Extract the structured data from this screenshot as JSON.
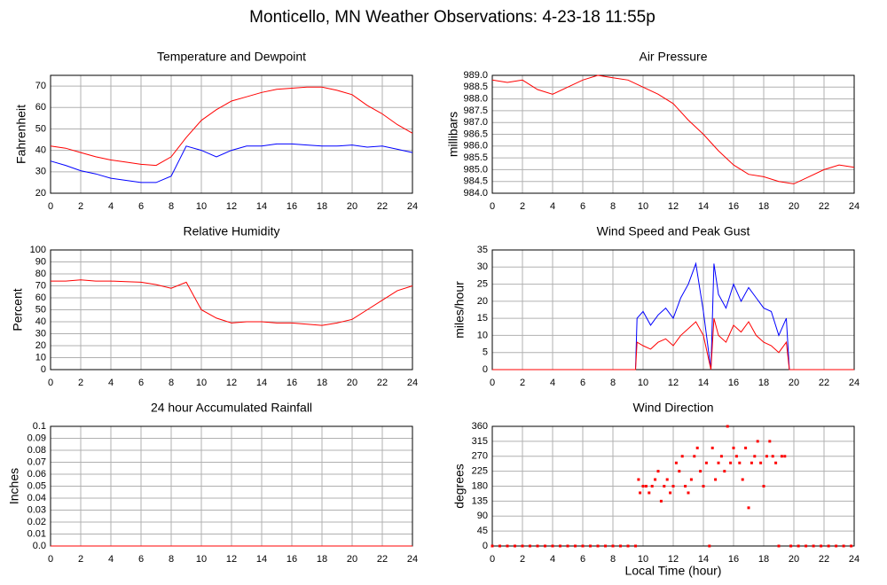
{
  "title": "Monticello, MN Weather Observations: 4-23-18 11:55p",
  "chart_data": [
    {
      "type": "line",
      "title": "Temperature and Dewpoint",
      "ylabel": "Fahrenheit",
      "x": [
        0,
        1,
        2,
        3,
        4,
        5,
        6,
        7,
        8,
        9,
        10,
        11,
        12,
        13,
        14,
        15,
        16,
        17,
        18,
        19,
        20,
        21,
        22,
        23,
        24
      ],
      "series": [
        {
          "name": "Temperature",
          "color": "#ff0000",
          "values": [
            42,
            41,
            39,
            37,
            35.5,
            34.5,
            33.5,
            33,
            37,
            46,
            54,
            59,
            63,
            65,
            67,
            68.5,
            69,
            69.5,
            69.5,
            68,
            66,
            61,
            57,
            52,
            48
          ]
        },
        {
          "name": "Dewpoint",
          "color": "#0000ff",
          "values": [
            35,
            33,
            30.5,
            29,
            27,
            26,
            25,
            25,
            28,
            42,
            40,
            37,
            40,
            42,
            42,
            43,
            43,
            42.5,
            42,
            42,
            42.5,
            41.5,
            42,
            40.5,
            39
          ]
        }
      ],
      "xlim": [
        0,
        24
      ],
      "xticks": [
        0,
        2,
        4,
        6,
        8,
        10,
        12,
        14,
        16,
        18,
        20,
        22,
        24
      ],
      "ylim": [
        20,
        75
      ],
      "yticks": [
        20,
        30,
        40,
        50,
        60,
        70
      ],
      "grid": true
    },
    {
      "type": "line",
      "title": "Air Pressure",
      "ylabel": "millibars",
      "x": [
        0,
        1,
        2,
        3,
        4,
        5,
        6,
        7,
        8,
        9,
        10,
        11,
        12,
        13,
        14,
        15,
        16,
        17,
        18,
        19,
        20,
        21,
        22,
        23,
        24
      ],
      "series": [
        {
          "name": "Air Pressure",
          "color": "#ff0000",
          "values": [
            988.8,
            988.7,
            988.8,
            988.4,
            988.2,
            988.5,
            988.8,
            989,
            988.9,
            988.8,
            988.5,
            988.2,
            987.8,
            987.1,
            986.5,
            985.8,
            985.2,
            984.8,
            984.7,
            984.5,
            984.4,
            984.7,
            985,
            985.2,
            985.1
          ]
        }
      ],
      "xlim": [
        0,
        24
      ],
      "xticks": [
        0,
        2,
        4,
        6,
        8,
        10,
        12,
        14,
        16,
        18,
        20,
        22,
        24
      ],
      "ylim": [
        984,
        989
      ],
      "yticks": [
        {
          "value": 984,
          "label": "984.0"
        },
        984.5,
        {
          "value": 985,
          "label": "985.0"
        },
        985.5,
        {
          "value": 986,
          "label": "986.0"
        },
        986.5,
        {
          "value": 987,
          "label": "987.0"
        },
        987.5,
        {
          "value": 988,
          "label": "988.0"
        },
        988.5,
        {
          "value": 989,
          "label": "989.0"
        }
      ],
      "grid": true
    },
    {
      "type": "line",
      "title": "Relative Humidity",
      "ylabel": "Percent",
      "x": [
        0,
        1,
        2,
        3,
        4,
        5,
        6,
        7,
        8,
        9,
        10,
        11,
        12,
        13,
        14,
        15,
        16,
        17,
        18,
        19,
        20,
        21,
        22,
        23,
        24
      ],
      "series": [
        {
          "name": "Relative Humidity",
          "color": "#ff0000",
          "values": [
            74,
            74,
            75,
            74,
            74,
            73.5,
            73,
            71,
            68,
            73,
            50,
            43,
            39,
            40,
            40,
            39,
            39,
            38,
            37,
            39,
            42,
            50,
            58,
            66,
            70
          ]
        }
      ],
      "xlim": [
        0,
        24
      ],
      "xticks": [
        0,
        2,
        4,
        6,
        8,
        10,
        12,
        14,
        16,
        18,
        20,
        22,
        24
      ],
      "ylim": [
        0,
        100
      ],
      "yticks": [
        0,
        10,
        20,
        30,
        40,
        50,
        60,
        70,
        80,
        90,
        100
      ],
      "grid": true
    },
    {
      "type": "line",
      "title": "Wind Speed and Peak Gust",
      "ylabel": "miles/hour",
      "x": [
        0,
        9.5,
        9.6,
        10,
        10.5,
        11,
        11.5,
        12,
        12.5,
        13,
        13.5,
        14,
        14.5,
        14.7,
        15,
        15.5,
        16,
        16.5,
        17,
        17.5,
        18,
        18.5,
        19,
        19.5,
        19.7,
        24
      ],
      "series": [
        {
          "name": "Peak Gust",
          "color": "#0000ff",
          "values": [
            0,
            0,
            15,
            17,
            13,
            16,
            18,
            15,
            21,
            25,
            31,
            17,
            0,
            31,
            22,
            18,
            25,
            20,
            24,
            21,
            18,
            17,
            10,
            15,
            0,
            0
          ]
        },
        {
          "name": "Wind Speed",
          "color": "#ff0000",
          "values": [
            0,
            0,
            8,
            7,
            6,
            8,
            9,
            7,
            10,
            12,
            14,
            10,
            0,
            15,
            10,
            8,
            13,
            11,
            14,
            10,
            8,
            7,
            5,
            8,
            0,
            0
          ]
        }
      ],
      "xlim": [
        0,
        24
      ],
      "xticks": [
        0,
        2,
        4,
        6,
        8,
        10,
        12,
        14,
        16,
        18,
        20,
        22,
        24
      ],
      "ylim": [
        0,
        35
      ],
      "yticks": [
        0,
        5,
        10,
        15,
        20,
        25,
        30,
        35
      ],
      "grid": true
    },
    {
      "type": "line",
      "title": "24 hour Accumulated Rainfall",
      "ylabel": "Inches",
      "x": [
        0,
        24
      ],
      "series": [
        {
          "name": "Rainfall",
          "color": "#ff0000",
          "values": [
            0,
            0
          ]
        }
      ],
      "xlim": [
        0,
        24
      ],
      "xticks": [
        0,
        2,
        4,
        6,
        8,
        10,
        12,
        14,
        16,
        18,
        20,
        22,
        24
      ],
      "ylim": [
        0,
        0.1
      ],
      "yticks": [
        {
          "value": 0,
          "label": "0.0"
        },
        0.01,
        0.02,
        0.03,
        0.04,
        0.05,
        0.06,
        0.07,
        0.08,
        0.09,
        0.1
      ],
      "grid": true
    },
    {
      "type": "scatter",
      "title": "Wind Direction",
      "ylabel": "degrees",
      "xlabel": "Local Time (hour)",
      "x": [
        0,
        0.5,
        1,
        1.5,
        2,
        2.5,
        3,
        3.5,
        4,
        4.5,
        5,
        5.5,
        6,
        6.5,
        7,
        7.5,
        8,
        8.5,
        9,
        9.5,
        9.7,
        9.8,
        10,
        10.2,
        10.4,
        10.6,
        10.8,
        11,
        11.2,
        11.4,
        11.6,
        11.8,
        12,
        12.2,
        12.4,
        12.6,
        12.8,
        13,
        13.2,
        13.4,
        13.6,
        13.8,
        14,
        14.2,
        14.4,
        14.6,
        14.8,
        15,
        15.2,
        15.4,
        15.6,
        15.8,
        16,
        16.2,
        16.4,
        16.6,
        16.8,
        17,
        17.2,
        17.4,
        17.6,
        17.8,
        18,
        18.2,
        18.4,
        18.6,
        18.8,
        19,
        19.2,
        19.4,
        19.8,
        20.3,
        20.8,
        21.3,
        21.8,
        22.3,
        22.8,
        23.3,
        23.8
      ],
      "series": [
        {
          "name": "Wind Direction",
          "color": "#ff0000",
          "values": [
            0,
            0,
            0,
            0,
            0,
            0,
            0,
            0,
            0,
            0,
            0,
            0,
            0,
            0,
            0,
            0,
            0,
            0,
            0,
            0,
            200,
            160,
            180,
            180,
            160,
            180,
            200,
            225,
            135,
            180,
            200,
            160,
            180,
            250,
            225,
            270,
            180,
            160,
            200,
            270,
            295,
            225,
            180,
            250,
            0,
            295,
            200,
            250,
            270,
            225,
            360,
            250,
            295,
            270,
            250,
            200,
            295,
            115,
            250,
            270,
            315,
            250,
            180,
            270,
            315,
            270,
            250,
            0,
            270,
            270,
            0,
            0,
            0,
            0,
            0,
            0,
            0,
            0,
            0
          ]
        }
      ],
      "xlim": [
        0,
        24
      ],
      "xticks": [
        0,
        2,
        4,
        6,
        8,
        10,
        12,
        14,
        16,
        18,
        20,
        22,
        24
      ],
      "ylim": [
        0,
        360
      ],
      "yticks": [
        0,
        45,
        90,
        135,
        180,
        225,
        270,
        315,
        360
      ],
      "grid": true
    }
  ]
}
